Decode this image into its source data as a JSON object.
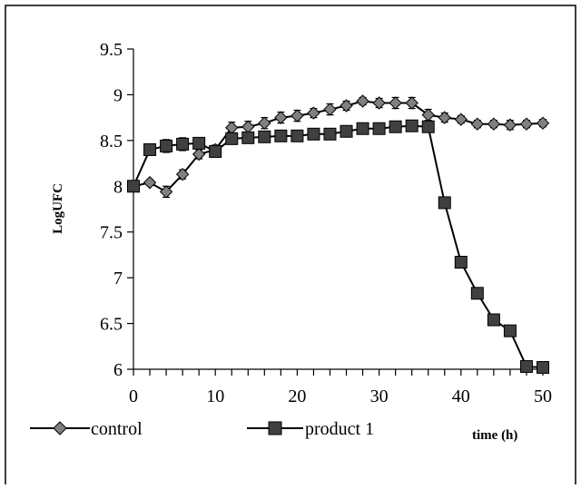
{
  "chart_data": {
    "type": "line",
    "title": "",
    "xlabel": "time (h)",
    "ylabel": "LogUFC",
    "xlim": [
      0,
      50
    ],
    "ylim": [
      6,
      9.5
    ],
    "xticks": [
      "0",
      "10",
      "20",
      "30",
      "40",
      "50"
    ],
    "xtick_values": [
      0,
      10,
      20,
      30,
      40,
      50
    ],
    "yticks": [
      "6",
      "6.5",
      "7",
      "7.5",
      "8",
      "8.5",
      "9",
      "9.5"
    ],
    "ytick_values": [
      6,
      6.5,
      7,
      7.5,
      8,
      8.5,
      9,
      9.5
    ],
    "grid": false,
    "legend_position": "bottom-left",
    "series": [
      {
        "name": "control",
        "marker": "diamond",
        "color": "#555555",
        "x": [
          0,
          2,
          4,
          6,
          8,
          10,
          12,
          14,
          16,
          18,
          20,
          22,
          24,
          26,
          28,
          30,
          32,
          34,
          36,
          38,
          40,
          42,
          44,
          46,
          48,
          50
        ],
        "y": [
          8.0,
          8.04,
          7.94,
          8.13,
          8.35,
          8.4,
          8.64,
          8.65,
          8.69,
          8.75,
          8.77,
          8.8,
          8.84,
          8.88,
          8.93,
          8.91,
          8.91,
          8.91,
          8.78,
          8.75,
          8.73,
          8.68,
          8.68,
          8.67,
          8.68,
          8.69
        ],
        "err": [
          0,
          0.03,
          0.06,
          0.05,
          0.05,
          0.05,
          0.06,
          0.06,
          0.06,
          0.06,
          0.06,
          0.05,
          0.06,
          0.05,
          0.04,
          0.05,
          0.06,
          0.06,
          0.06,
          0.05,
          0.04,
          0.04,
          0.04,
          0.05,
          0.04,
          0.04
        ]
      },
      {
        "name": "product 1",
        "marker": "square",
        "color": "#555555",
        "x": [
          0,
          2,
          4,
          6,
          8,
          10,
          12,
          14,
          16,
          18,
          20,
          22,
          24,
          26,
          28,
          30,
          32,
          34,
          36,
          38,
          40,
          42,
          44,
          46,
          48,
          50
        ],
        "y": [
          8.0,
          8.4,
          8.44,
          8.46,
          8.47,
          8.38,
          8.52,
          8.53,
          8.54,
          8.55,
          8.55,
          8.57,
          8.57,
          8.6,
          8.63,
          8.63,
          8.65,
          8.66,
          8.65,
          7.82,
          7.17,
          6.83,
          6.54,
          6.42,
          6.03,
          6.02
        ],
        "err": [
          0,
          0.06,
          0.07,
          0.07,
          0.06,
          0.06,
          0.05,
          0.05,
          0.05,
          0.05,
          0.06,
          0.05,
          0.05,
          0.05,
          0.06,
          0.06,
          0.06,
          0.06,
          0.06,
          0.06,
          0.06,
          0.06,
          0.06,
          0.06,
          0.06,
          0.05
        ]
      }
    ]
  }
}
